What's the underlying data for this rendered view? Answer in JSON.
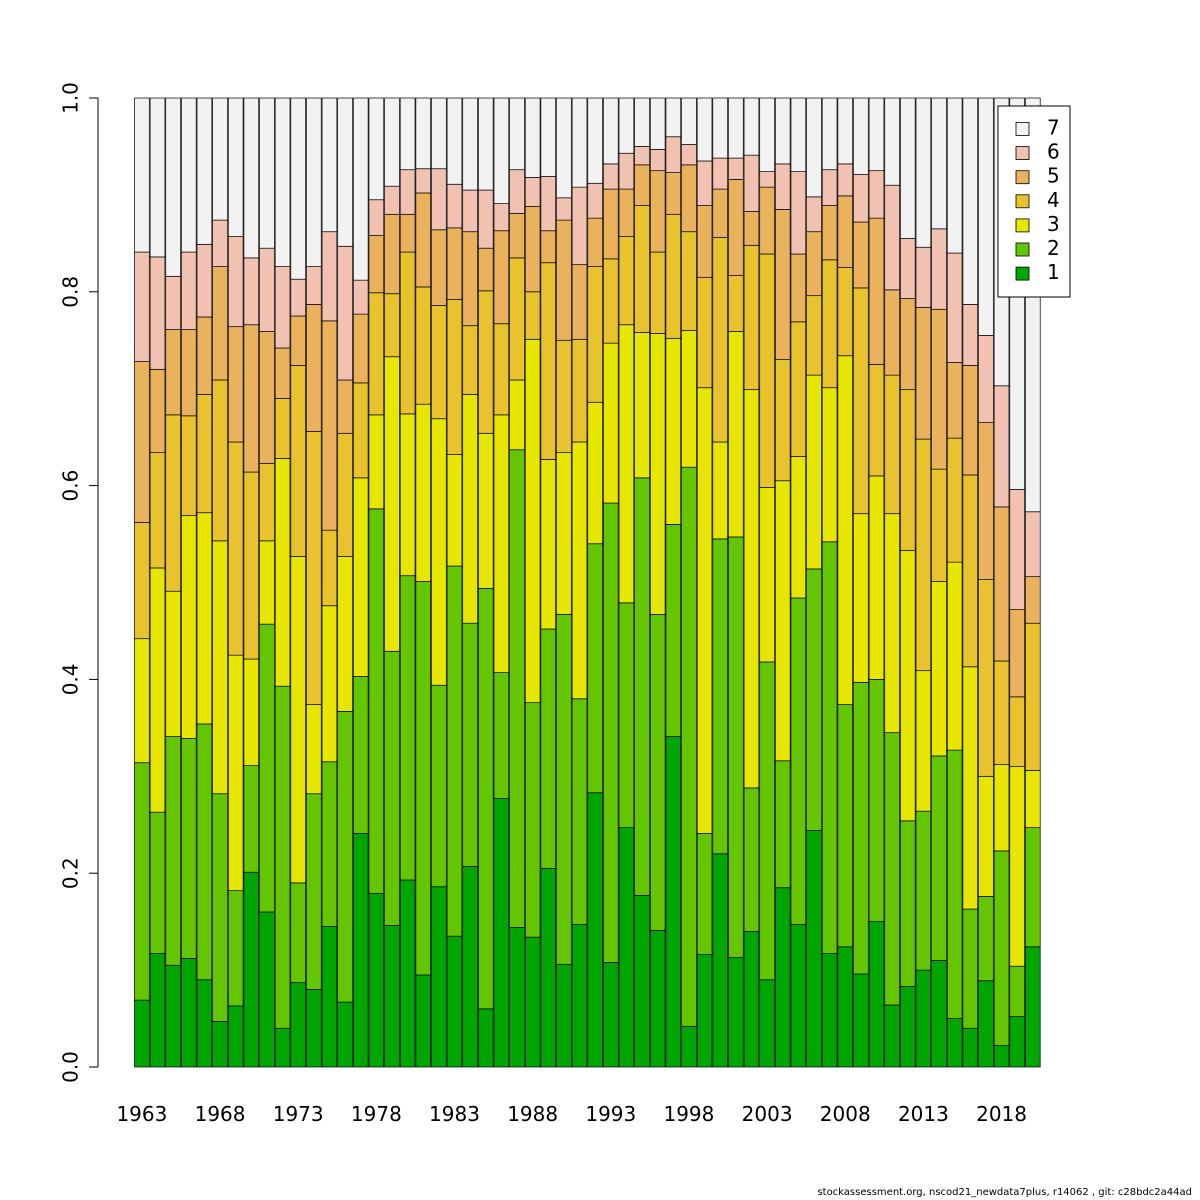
{
  "chart_data": {
    "type": "bar",
    "stacked": true,
    "title": "",
    "xlabel": "",
    "ylabel": "",
    "ylim": [
      0,
      1
    ],
    "yticks": [
      "0.0",
      "0.2",
      "0.4",
      "0.6",
      "0.8",
      "1.0"
    ],
    "ytick_values": [
      0,
      0.2,
      0.4,
      0.6,
      0.8,
      1.0
    ],
    "xtick_labels": [
      "1963",
      "1968",
      "1973",
      "1978",
      "1983",
      "1988",
      "1993",
      "1998",
      "2003",
      "2008",
      "2013",
      "2018"
    ],
    "categories": [
      1963,
      1964,
      1965,
      1966,
      1967,
      1968,
      1969,
      1970,
      1971,
      1972,
      1973,
      1974,
      1975,
      1976,
      1977,
      1978,
      1979,
      1980,
      1981,
      1982,
      1983,
      1984,
      1985,
      1986,
      1987,
      1988,
      1989,
      1990,
      1991,
      1992,
      1993,
      1994,
      1995,
      1996,
      1997,
      1998,
      1999,
      2000,
      2001,
      2002,
      2003,
      2004,
      2005,
      2006,
      2007,
      2008,
      2009,
      2010,
      2011,
      2012,
      2013,
      2014,
      2015,
      2016,
      2017,
      2018,
      2019,
      2020
    ],
    "legend_position": "top-right",
    "series": [
      {
        "name": "1",
        "color": "#00a600",
        "cumulative": [
          0.069,
          0.117,
          0.105,
          0.112,
          0.09,
          0.047,
          0.063,
          0.201,
          0.16,
          0.04,
          0.087,
          0.08,
          0.145,
          0.067,
          0.241,
          0.179,
          0.146,
          0.193,
          0.095,
          0.186,
          0.135,
          0.207,
          0.06,
          0.277,
          0.144,
          0.134,
          0.205,
          0.106,
          0.147,
          0.283,
          0.108,
          0.247,
          0.177,
          0.141,
          0.341,
          0.042,
          0.116,
          0.22,
          0.113,
          0.14,
          0.09,
          0.185,
          0.147,
          0.244,
          0.117,
          0.124,
          0.096,
          0.15,
          0.064,
          0.083,
          0.1,
          0.11,
          0.05,
          0.04,
          0.089,
          0.022,
          0.052,
          0.124
        ]
      },
      {
        "name": "2",
        "color": "#63c600",
        "cumulative": [
          0.314,
          0.263,
          0.341,
          0.339,
          0.354,
          0.282,
          0.182,
          0.311,
          0.457,
          0.393,
          0.19,
          0.282,
          0.315,
          0.367,
          0.403,
          0.576,
          0.429,
          0.507,
          0.501,
          0.394,
          0.517,
          0.458,
          0.494,
          0.407,
          0.637,
          0.376,
          0.452,
          0.467,
          0.38,
          0.54,
          0.582,
          0.479,
          0.608,
          0.467,
          0.56,
          0.619,
          0.241,
          0.545,
          0.547,
          0.288,
          0.418,
          0.316,
          0.484,
          0.514,
          0.542,
          0.374,
          0.397,
          0.4,
          0.345,
          0.254,
          0.264,
          0.321,
          0.327,
          0.163,
          0.176,
          0.223,
          0.104,
          0.247
        ]
      },
      {
        "name": "3",
        "color": "#e6e600",
        "cumulative": [
          0.442,
          0.515,
          0.491,
          0.569,
          0.572,
          0.543,
          0.425,
          0.421,
          0.543,
          0.628,
          0.527,
          0.374,
          0.476,
          0.527,
          0.608,
          0.673,
          0.733,
          0.674,
          0.684,
          0.669,
          0.632,
          0.694,
          0.654,
          0.673,
          0.709,
          0.751,
          0.627,
          0.634,
          0.645,
          0.686,
          0.747,
          0.766,
          0.758,
          0.757,
          0.752,
          0.76,
          0.701,
          0.645,
          0.759,
          0.699,
          0.598,
          0.605,
          0.63,
          0.714,
          0.701,
          0.734,
          0.571,
          0.61,
          0.571,
          0.533,
          0.409,
          0.501,
          0.521,
          0.413,
          0.3,
          0.312,
          0.31,
          0.306
        ]
      },
      {
        "name": "4",
        "color": "#e8c32e",
        "cumulative": [
          0.562,
          0.634,
          0.673,
          0.672,
          0.694,
          0.709,
          0.645,
          0.614,
          0.623,
          0.69,
          0.724,
          0.656,
          0.554,
          0.654,
          0.706,
          0.799,
          0.798,
          0.841,
          0.805,
          0.786,
          0.792,
          0.765,
          0.801,
          0.767,
          0.835,
          0.8,
          0.83,
          0.75,
          0.751,
          0.826,
          0.834,
          0.857,
          0.889,
          0.841,
          0.88,
          0.862,
          0.815,
          0.856,
          0.817,
          0.848,
          0.839,
          0.73,
          0.769,
          0.796,
          0.833,
          0.825,
          0.804,
          0.725,
          0.714,
          0.699,
          0.648,
          0.617,
          0.649,
          0.611,
          0.503,
          0.419,
          0.382,
          0.458
        ]
      },
      {
        "name": "5",
        "color": "#ebb25e",
        "cumulative": [
          0.728,
          0.72,
          0.761,
          0.761,
          0.774,
          0.826,
          0.764,
          0.766,
          0.759,
          0.742,
          0.775,
          0.787,
          0.77,
          0.709,
          0.777,
          0.858,
          0.88,
          0.88,
          0.902,
          0.864,
          0.866,
          0.862,
          0.845,
          0.863,
          0.881,
          0.888,
          0.863,
          0.874,
          0.828,
          0.876,
          0.906,
          0.906,
          0.931,
          0.925,
          0.923,
          0.931,
          0.889,
          0.906,
          0.916,
          0.883,
          0.908,
          0.885,
          0.839,
          0.862,
          0.889,
          0.899,
          0.872,
          0.876,
          0.802,
          0.793,
          0.784,
          0.782,
          0.727,
          0.724,
          0.665,
          0.578,
          0.472,
          0.506
        ]
      },
      {
        "name": "6",
        "color": "#f1c2b2",
        "cumulative": [
          0.841,
          0.836,
          0.816,
          0.841,
          0.849,
          0.874,
          0.857,
          0.835,
          0.845,
          0.826,
          0.813,
          0.826,
          0.862,
          0.847,
          0.812,
          0.895,
          0.909,
          0.926,
          0.927,
          0.927,
          0.911,
          0.905,
          0.905,
          0.891,
          0.926,
          0.918,
          0.919,
          0.897,
          0.908,
          0.912,
          0.932,
          0.943,
          0.95,
          0.947,
          0.96,
          0.952,
          0.935,
          0.938,
          0.938,
          0.941,
          0.924,
          0.932,
          0.924,
          0.898,
          0.926,
          0.932,
          0.921,
          0.925,
          0.91,
          0.855,
          0.846,
          0.865,
          0.84,
          0.787,
          0.755,
          0.703,
          0.596,
          0.573
        ]
      },
      {
        "name": "7",
        "color": "#f2f2f2",
        "cumulative": [
          1,
          1,
          1,
          1,
          1,
          1,
          1,
          1,
          1,
          1,
          1,
          1,
          1,
          1,
          1,
          1,
          1,
          1,
          1,
          1,
          1,
          1,
          1,
          1,
          1,
          1,
          1,
          1,
          1,
          1,
          1,
          1,
          1,
          1,
          1,
          1,
          1,
          1,
          1,
          1,
          1,
          1,
          1,
          1,
          1,
          1,
          1,
          1,
          1,
          1,
          1,
          1,
          1,
          1,
          1,
          1,
          1,
          1
        ]
      }
    ]
  },
  "footer": "stockassessment.org, nscod21_newdata7plus, r14062 , git: c28bdc2a44ad"
}
